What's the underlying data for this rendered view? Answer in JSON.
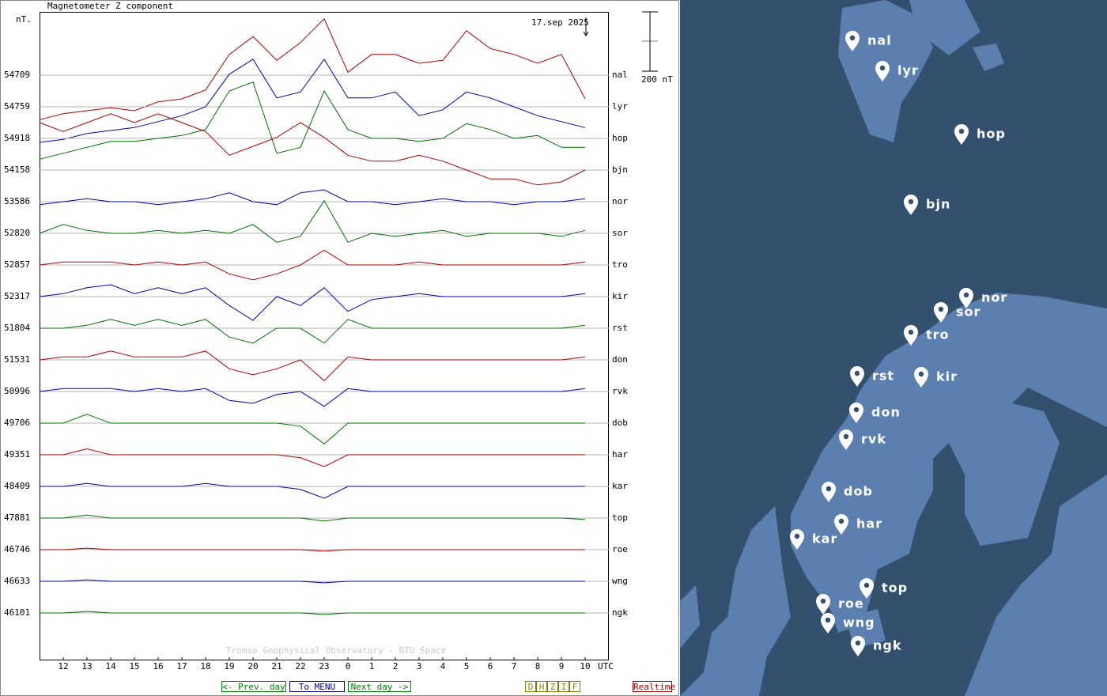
{
  "chart_data": {
    "type": "line",
    "title": "Magnetometer Z component",
    "y_unit": "nT.",
    "date": "17.sep 2025",
    "x_unit": "UTC",
    "watermark": "Tromso Geophysical Observatory - DTU Space",
    "scale": {
      "value": 200,
      "label": "200 nT"
    },
    "xlim": [
      11,
      35
    ],
    "xticks": [
      12,
      13,
      14,
      15,
      16,
      17,
      18,
      19,
      20,
      21,
      22,
      23,
      {
        "value": 24,
        "label": "0"
      },
      {
        "value": 25,
        "label": "1"
      },
      {
        "value": 26,
        "label": "2"
      },
      {
        "value": 27,
        "label": "3"
      },
      {
        "value": 28,
        "label": "4"
      },
      {
        "value": 29,
        "label": "5"
      },
      {
        "value": 30,
        "label": "6"
      },
      {
        "value": 31,
        "label": "7"
      },
      {
        "value": 32,
        "label": "8"
      },
      {
        "value": 33,
        "label": "9"
      },
      {
        "value": 34,
        "label": "10"
      }
    ],
    "x": [
      11,
      12,
      13,
      14,
      15,
      16,
      17,
      18,
      19,
      20,
      21,
      22,
      23,
      24,
      25,
      26,
      27,
      28,
      29,
      30,
      31,
      32,
      33,
      34
    ],
    "series": [
      {
        "name": "nal",
        "baseline": 54709,
        "color": "#b00000",
        "values": [
          -150,
          -130,
          -120,
          -110,
          -120,
          -90,
          -80,
          -50,
          70,
          130,
          50,
          110,
          190,
          10,
          70,
          70,
          40,
          50,
          150,
          90,
          70,
          40,
          70,
          -80
        ]
      },
      {
        "name": "lyr",
        "baseline": 54759,
        "color": "#0000b0",
        "values": [
          -120,
          -110,
          -90,
          -80,
          -70,
          -50,
          -30,
          0,
          110,
          160,
          30,
          50,
          160,
          30,
          30,
          50,
          -30,
          -10,
          50,
          30,
          0,
          -30,
          -50,
          -70
        ]
      },
      {
        "name": "hop",
        "baseline": 54918,
        "color": "#007000",
        "values": [
          -70,
          -50,
          -30,
          -10,
          -10,
          0,
          10,
          30,
          160,
          190,
          -50,
          -30,
          160,
          30,
          0,
          0,
          -10,
          0,
          50,
          30,
          0,
          10,
          -30,
          -30
        ]
      },
      {
        "name": "bjn",
        "baseline": 54158,
        "color": "#b00000",
        "values": [
          160,
          130,
          160,
          190,
          160,
          190,
          160,
          130,
          50,
          80,
          110,
          160,
          110,
          50,
          30,
          30,
          50,
          30,
          0,
          -30,
          -30,
          -50,
          -40,
          0
        ]
      },
      {
        "name": "nor",
        "baseline": 53586,
        "color": "#0000b0",
        "values": [
          -10,
          0,
          10,
          0,
          0,
          -10,
          0,
          10,
          30,
          0,
          -10,
          30,
          40,
          0,
          0,
          -10,
          0,
          10,
          0,
          0,
          -10,
          0,
          0,
          10
        ]
      },
      {
        "name": "sor",
        "baseline": 52820,
        "color": "#007000",
        "values": [
          0,
          30,
          10,
          0,
          0,
          10,
          0,
          10,
          0,
          30,
          -30,
          -10,
          110,
          -30,
          0,
          -10,
          0,
          10,
          -10,
          0,
          0,
          0,
          -10,
          10
        ]
      },
      {
        "name": "tro",
        "baseline": 52857,
        "color": "#b00000",
        "values": [
          0,
          10,
          10,
          10,
          0,
          10,
          0,
          10,
          -30,
          -50,
          -30,
          0,
          50,
          0,
          0,
          0,
          10,
          0,
          0,
          0,
          0,
          0,
          0,
          10
        ]
      },
      {
        "name": "kir",
        "baseline": 52317,
        "color": "#0000b0",
        "values": [
          0,
          10,
          30,
          40,
          10,
          30,
          10,
          30,
          -30,
          -80,
          0,
          -30,
          30,
          -50,
          -10,
          0,
          10,
          0,
          0,
          0,
          0,
          0,
          0,
          10
        ]
      },
      {
        "name": "rst",
        "baseline": 51804,
        "color": "#007000",
        "values": [
          0,
          0,
          10,
          30,
          10,
          30,
          10,
          30,
          -30,
          -50,
          0,
          0,
          -50,
          30,
          0,
          0,
          0,
          0,
          0,
          0,
          0,
          0,
          0,
          10
        ]
      },
      {
        "name": "don",
        "baseline": 51531,
        "color": "#b00000",
        "values": [
          0,
          10,
          10,
          30,
          10,
          10,
          10,
          30,
          -30,
          -50,
          -30,
          0,
          -70,
          10,
          0,
          0,
          0,
          0,
          0,
          0,
          0,
          0,
          0,
          10
        ]
      },
      {
        "name": "rvk",
        "baseline": 50996,
        "color": "#0000b0",
        "values": [
          0,
          10,
          10,
          10,
          0,
          10,
          0,
          10,
          -30,
          -40,
          -10,
          0,
          -50,
          10,
          0,
          0,
          0,
          0,
          0,
          0,
          0,
          0,
          0,
          10
        ]
      },
      {
        "name": "dob",
        "baseline": 49706,
        "color": "#007000",
        "values": [
          0,
          0,
          30,
          0,
          0,
          0,
          0,
          0,
          0,
          0,
          0,
          -10,
          -70,
          0,
          0,
          0,
          0,
          0,
          0,
          0,
          0,
          0,
          0,
          0
        ]
      },
      {
        "name": "har",
        "baseline": 49351,
        "color": "#b00000",
        "values": [
          0,
          0,
          20,
          0,
          0,
          0,
          0,
          0,
          0,
          0,
          0,
          -10,
          -40,
          0,
          0,
          0,
          0,
          0,
          0,
          0,
          0,
          0,
          0,
          0
        ]
      },
      {
        "name": "kar",
        "baseline": 48409,
        "color": "#0000b0",
        "values": [
          0,
          0,
          10,
          0,
          0,
          0,
          0,
          10,
          0,
          0,
          0,
          -10,
          -40,
          0,
          0,
          0,
          0,
          0,
          0,
          0,
          0,
          0,
          0,
          0
        ]
      },
      {
        "name": "top",
        "baseline": 47881,
        "color": "#007000",
        "values": [
          0,
          0,
          10,
          0,
          0,
          0,
          0,
          0,
          0,
          0,
          0,
          0,
          -10,
          0,
          0,
          0,
          0,
          0,
          0,
          0,
          0,
          0,
          0,
          -5
        ]
      },
      {
        "name": "roe",
        "baseline": 46746,
        "color": "#b00000",
        "values": [
          0,
          0,
          5,
          0,
          0,
          0,
          0,
          0,
          0,
          0,
          0,
          0,
          -5,
          0,
          0,
          0,
          0,
          0,
          0,
          0,
          0,
          0,
          0,
          0
        ]
      },
      {
        "name": "wng",
        "baseline": 46633,
        "color": "#0000b0",
        "values": [
          0,
          0,
          5,
          0,
          0,
          0,
          0,
          0,
          0,
          0,
          0,
          0,
          -5,
          0,
          0,
          0,
          0,
          0,
          0,
          0,
          0,
          0,
          0,
          0
        ]
      },
      {
        "name": "ngk",
        "baseline": 46101,
        "color": "#007000",
        "values": [
          0,
          0,
          5,
          0,
          0,
          0,
          0,
          0,
          0,
          0,
          0,
          0,
          -5,
          0,
          0,
          0,
          0,
          0,
          0,
          0,
          0,
          0,
          0,
          0
        ]
      }
    ]
  },
  "nav": {
    "buttons": [
      "<- Prev. day",
      "To MENU",
      "Next day ->"
    ],
    "components": [
      "D",
      "H",
      "Z",
      "I",
      "F"
    ],
    "realtime": "Realtime"
  }
}
